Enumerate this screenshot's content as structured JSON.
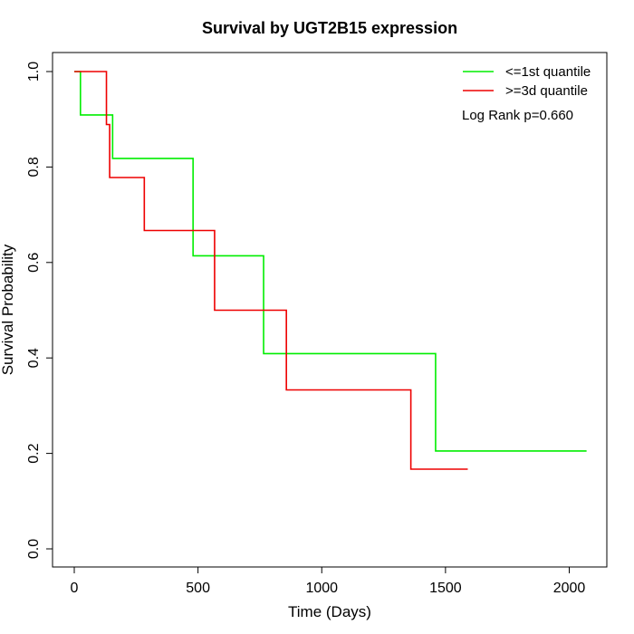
{
  "chart_data": {
    "type": "line",
    "title": "Survival by UGT2B15 expression",
    "xlabel": "Time (Days)",
    "ylabel": "Survival Probability",
    "xlim": [
      0,
      2070
    ],
    "ylim": [
      0,
      1
    ],
    "x_ticks": [
      0,
      500,
      1000,
      1500,
      2000
    ],
    "y_ticks": [
      0.0,
      0.2,
      0.4,
      0.6,
      0.8,
      1.0
    ],
    "x_tick_labels": [
      "0",
      "500",
      "1000",
      "1500",
      "2000"
    ],
    "y_tick_labels": [
      "0.0",
      "0.2",
      "0.4",
      "0.6",
      "0.8",
      "1.0"
    ],
    "grid": false,
    "legend_position": "top-right",
    "annotation": "Log Rank p=0.660",
    "series": [
      {
        "name": "<=1st quantile",
        "color": "#00ee00",
        "step_x": [
          0,
          25,
          155,
          480,
          765,
          1460,
          2070
        ],
        "step_y": [
          1.0,
          0.909,
          0.818,
          0.614,
          0.409,
          0.205,
          0.205
        ]
      },
      {
        "name": ">=3d quantile",
        "color": "#ee0000",
        "step_x": [
          0,
          130,
          143,
          283,
          567,
          857,
          1360,
          1590
        ],
        "step_y": [
          1.0,
          0.889,
          0.778,
          0.667,
          0.5,
          0.333,
          0.167,
          0.167
        ]
      }
    ]
  }
}
